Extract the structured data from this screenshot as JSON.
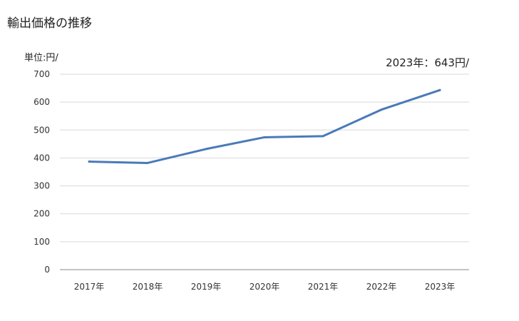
{
  "page": {
    "title": "輸出価格の推移",
    "unit_label": "単位:円/",
    "latest_label": "2023年：643円/"
  },
  "chart_data": {
    "type": "line",
    "categories": [
      "2017年",
      "2018年",
      "2019年",
      "2020年",
      "2021年",
      "2022年",
      "2023年"
    ],
    "series": [
      {
        "values": [
          387,
          382,
          432,
          474,
          478,
          573,
          643
        ]
      }
    ],
    "y_ticks": [
      "0",
      "100",
      "200",
      "300",
      "400",
      "500",
      "600",
      "700"
    ],
    "ylim": [
      0,
      700
    ],
    "grid": true,
    "line_color": "#4a7ab8",
    "grid_color": "#d9d9d9"
  }
}
